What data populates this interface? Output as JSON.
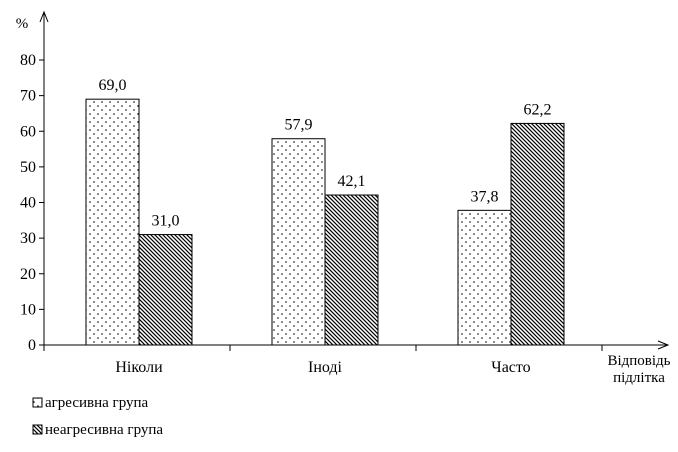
{
  "chart_data": {
    "type": "bar",
    "ylabel": "%",
    "xlabel_lines": [
      "Відповідь",
      "підлітка"
    ],
    "ylim": [
      0,
      80
    ],
    "yticks": [
      0,
      10,
      20,
      30,
      40,
      50,
      60,
      70,
      80
    ],
    "grid": false,
    "legend_position": "bottom-left",
    "categories": [
      "Ніколи",
      "Іноді",
      "Часто"
    ],
    "series": [
      {
        "name": "агресивна група",
        "values": [
          69.0,
          57.9,
          37.8
        ],
        "labels": [
          "69,0",
          "57,9",
          "37,8"
        ],
        "pattern": "dots"
      },
      {
        "name": "неагресивна група",
        "values": [
          31.0,
          42.1,
          62.2
        ],
        "labels": [
          "31,0",
          "42,1",
          "62,2"
        ],
        "pattern": "diagonal-hatch"
      }
    ]
  }
}
